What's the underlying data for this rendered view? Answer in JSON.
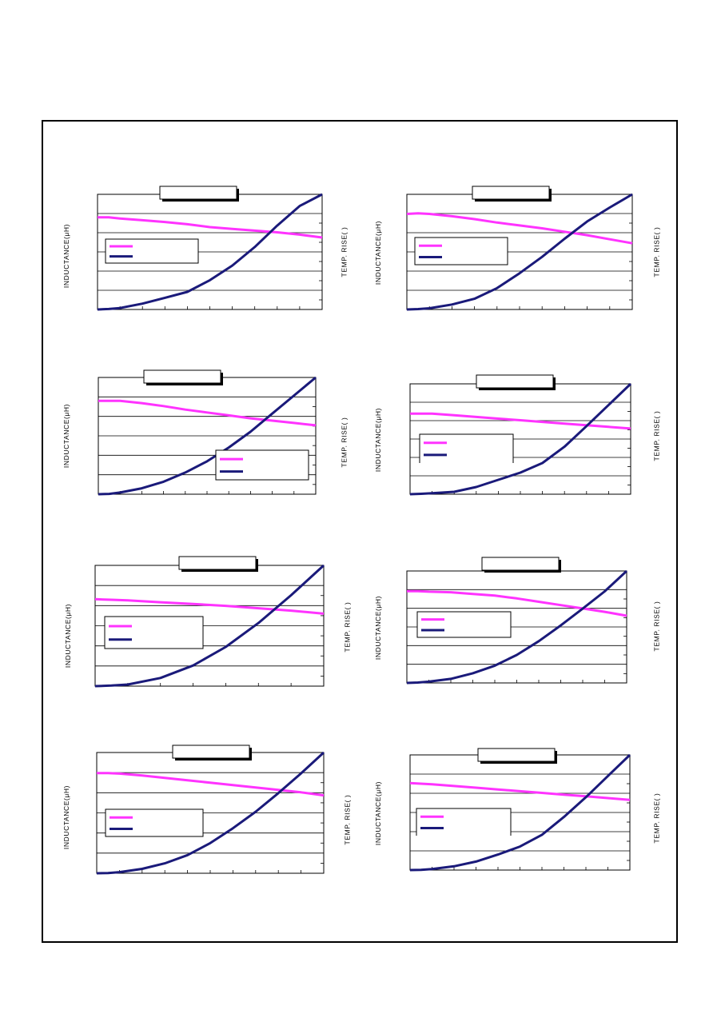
{
  "labels": {
    "y_left": "INDUCTANCE(μH)",
    "y_right": "TEMP. RISE(    )"
  },
  "colors": {
    "inductance": "#ff33ff",
    "temp_rise": "#1a1a7a",
    "grid": "#000000",
    "title_box_shadow": "#000000"
  },
  "chart_data": [
    {
      "type": "line",
      "title": "",
      "xlabel": "",
      "ylabel": "INDUCTANCE(μH)",
      "y2label": "TEMP. RISE(    )",
      "grid": "horizontal",
      "legend": "middle-left",
      "x_divisions": 10,
      "y_divisions": 6,
      "series": [
        {
          "axis": "left",
          "x": [
            0,
            0.5,
            1,
            2,
            3,
            4,
            5,
            6,
            7,
            8,
            9,
            10
          ],
          "values": [
            0.8,
            0.8,
            0.79,
            0.775,
            0.76,
            0.74,
            0.715,
            0.7,
            0.685,
            0.67,
            0.65,
            0.625
          ]
        },
        {
          "axis": "right",
          "x": [
            0,
            0.5,
            1,
            2,
            3,
            4,
            5,
            6,
            7,
            8,
            9,
            10
          ],
          "values": [
            0.0,
            0.005,
            0.015,
            0.06,
            0.12,
            0.18,
            0.3,
            0.45,
            0.64,
            0.86,
            1.06,
            1.18
          ]
        }
      ]
    },
    {
      "type": "line",
      "title": "",
      "xlabel": "",
      "ylabel": "INDUCTANCE(μH)",
      "y2label": "TEMP. RISE(    )",
      "grid": "horizontal",
      "legend": "middle-left",
      "x_divisions": 10,
      "y_divisions": 6,
      "series": [
        {
          "axis": "left",
          "x": [
            0,
            0.5,
            1,
            2,
            3,
            4,
            5,
            6,
            7,
            8,
            9,
            10
          ],
          "values": [
            0.83,
            0.835,
            0.83,
            0.81,
            0.785,
            0.755,
            0.73,
            0.705,
            0.675,
            0.645,
            0.61,
            0.575
          ]
        },
        {
          "axis": "right",
          "x": [
            0,
            0.5,
            1,
            2,
            3,
            4,
            5,
            6,
            7,
            8,
            9,
            10
          ],
          "values": [
            0.0,
            0.005,
            0.015,
            0.06,
            0.13,
            0.26,
            0.44,
            0.64,
            0.86,
            1.07,
            1.24,
            1.4
          ]
        }
      ]
    },
    {
      "type": "line",
      "title": "",
      "xlabel": "",
      "ylabel": "INDUCTANCE(μH)",
      "y2label": "TEMP. RISE(    )",
      "grid": "horizontal",
      "legend": "bottom-right",
      "x_divisions": 10,
      "y_divisions": 6,
      "series": [
        {
          "axis": "left",
          "x": [
            0,
            0.5,
            1,
            2,
            3,
            4,
            5,
            6,
            7,
            8,
            9,
            10
          ],
          "values": [
            0.8,
            0.8,
            0.8,
            0.78,
            0.755,
            0.725,
            0.7,
            0.675,
            0.65,
            0.63,
            0.61,
            0.59
          ]
        },
        {
          "axis": "right",
          "x": [
            0,
            0.5,
            1,
            2,
            3,
            4,
            5,
            6,
            7,
            8,
            9,
            10
          ],
          "values": [
            0.0,
            0.01,
            0.05,
            0.18,
            0.38,
            0.66,
            1.0,
            1.42,
            1.9,
            2.45,
            3.0,
            3.55
          ]
        }
      ]
    },
    {
      "type": "line",
      "title": "",
      "xlabel": "",
      "ylabel": "INDUCTANCE(μH)",
      "y2label": "TEMP. RISE(    )",
      "grid": "horizontal",
      "legend": "middle-left",
      "x_divisions": 10,
      "y_divisions": 6,
      "series": [
        {
          "axis": "left",
          "x": [
            0,
            0.5,
            1,
            2,
            3,
            4,
            5,
            6,
            7,
            8,
            9,
            10
          ],
          "values": [
            0.73,
            0.73,
            0.73,
            0.715,
            0.7,
            0.685,
            0.67,
            0.655,
            0.64,
            0.625,
            0.61,
            0.595
          ]
        },
        {
          "axis": "right",
          "x": [
            0,
            0.5,
            1,
            2,
            3,
            4,
            5,
            6,
            7,
            8,
            9,
            10
          ],
          "values": [
            0.0,
            0.008,
            0.02,
            0.05,
            0.15,
            0.3,
            0.45,
            0.65,
            0.99,
            1.42,
            1.86,
            2.3
          ]
        }
      ]
    },
    {
      "type": "line",
      "title": "",
      "xlabel": "",
      "ylabel": "INDUCTANCE(μH)",
      "y2label": "TEMP. RISE(    )",
      "grid": "horizontal",
      "legend": "middle-left",
      "x_divisions": 7,
      "y_divisions": 6,
      "series": [
        {
          "axis": "left",
          "x": [
            0,
            0.5,
            1,
            2,
            3,
            4,
            5,
            6,
            7
          ],
          "values": [
            0.72,
            0.715,
            0.71,
            0.695,
            0.68,
            0.665,
            0.645,
            0.625,
            0.6
          ]
        },
        {
          "axis": "right",
          "x": [
            0,
            0.5,
            1,
            2,
            3,
            4,
            5,
            6,
            7
          ],
          "values": [
            0.0,
            0.01,
            0.03,
            0.15,
            0.38,
            0.72,
            1.16,
            1.67,
            2.22
          ]
        }
      ]
    },
    {
      "type": "line",
      "title": "",
      "xlabel": "",
      "ylabel": "INDUCTANCE(μH)",
      "y2label": "TEMP. RISE(    )",
      "grid": "horizontal",
      "legend": "middle-left",
      "x_divisions": 10,
      "y_divisions": 6,
      "series": [
        {
          "axis": "left",
          "x": [
            0,
            0.5,
            1,
            2,
            3,
            4,
            5,
            6,
            7,
            8,
            9,
            10
          ],
          "values": [
            0.82,
            0.82,
            0.815,
            0.81,
            0.795,
            0.78,
            0.755,
            0.725,
            0.695,
            0.665,
            0.635,
            0.6
          ]
        },
        {
          "axis": "right",
          "x": [
            0,
            0.5,
            1,
            2,
            3,
            4,
            5,
            6,
            7,
            8,
            9,
            10
          ],
          "values": [
            0.0,
            0.008,
            0.025,
            0.08,
            0.19,
            0.34,
            0.55,
            0.82,
            1.13,
            1.46,
            1.8,
            2.2
          ]
        }
      ]
    },
    {
      "type": "line",
      "title": "",
      "xlabel": "",
      "ylabel": "INDUCTANCE(μH)",
      "y2label": "TEMP. RISE(    )",
      "grid": "horizontal",
      "legend": "middle-left",
      "x_divisions": 10,
      "y_divisions": 6,
      "series": [
        {
          "axis": "left",
          "x": [
            0,
            0.5,
            1,
            2,
            3,
            4,
            5,
            6,
            7,
            8,
            9,
            10
          ],
          "values": [
            0.83,
            0.83,
            0.825,
            0.81,
            0.79,
            0.77,
            0.75,
            0.73,
            0.71,
            0.69,
            0.67,
            0.645
          ]
        },
        {
          "axis": "right",
          "x": [
            0,
            0.5,
            1,
            2,
            3,
            4,
            5,
            6,
            7,
            8,
            9,
            10
          ],
          "values": [
            0.0,
            0.005,
            0.02,
            0.08,
            0.18,
            0.33,
            0.55,
            0.82,
            1.12,
            1.46,
            1.82,
            2.2
          ]
        }
      ]
    },
    {
      "type": "line",
      "title": "",
      "xlabel": "",
      "ylabel": "INDUCTANCE(μH)",
      "y2label": "TEMP. RISE(    )",
      "grid": "horizontal",
      "legend": "middle-left",
      "x_divisions": 10,
      "y_divisions": 6,
      "series": [
        {
          "axis": "left",
          "x": [
            0,
            0.5,
            1,
            2,
            3,
            4,
            5,
            6,
            7,
            8,
            9,
            10
          ],
          "values": [
            0.755,
            0.75,
            0.745,
            0.73,
            0.715,
            0.7,
            0.685,
            0.67,
            0.655,
            0.64,
            0.625,
            0.61
          ]
        },
        {
          "axis": "right",
          "x": [
            0,
            0.5,
            1,
            2,
            3,
            4,
            5,
            6,
            7,
            8,
            9,
            10
          ],
          "values": [
            0.0,
            0.005,
            0.02,
            0.08,
            0.18,
            0.33,
            0.5,
            0.75,
            1.13,
            1.55,
            2.0,
            2.45
          ]
        }
      ]
    }
  ]
}
